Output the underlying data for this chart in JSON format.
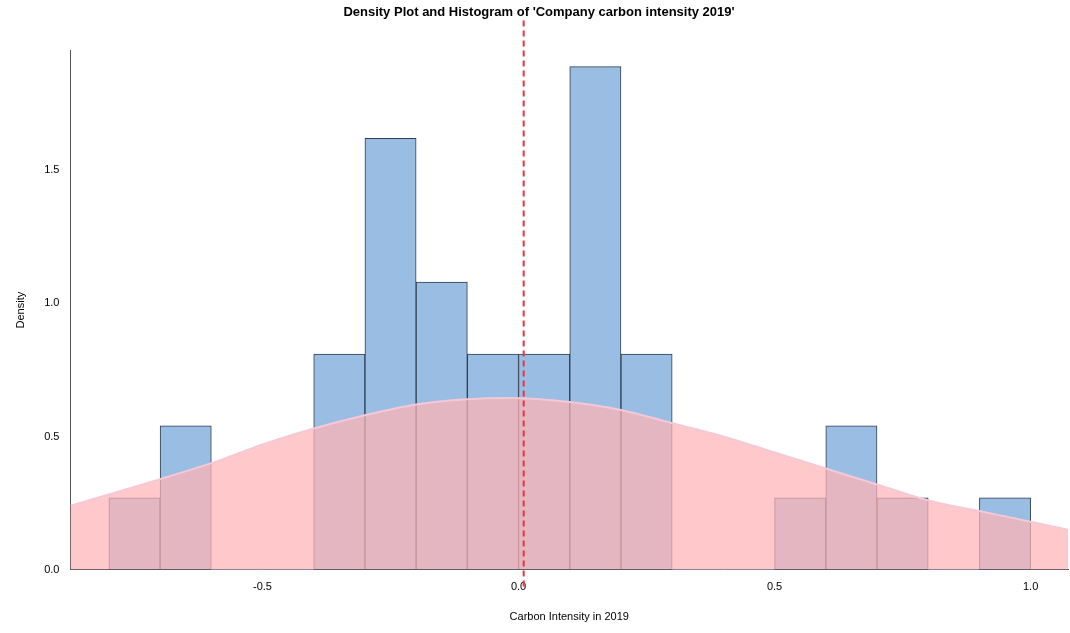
{
  "chart_data": {
    "type": "histogram",
    "title": "Density Plot and Histogram of 'Company carbon intensity 2019'",
    "xlabel": "Carbon Intensity in 2019",
    "ylabel": "Density",
    "xlim": [
      -0.875,
      1.073
    ],
    "ylim": [
      0,
      1.95
    ],
    "xticks": [
      {
        "value": -0.5,
        "label": "-0.5"
      },
      {
        "value": 0,
        "label": "0.0"
      },
      {
        "value": 0.5,
        "label": "0.5"
      },
      {
        "value": 1,
        "label": "1.0"
      }
    ],
    "yticks": [
      {
        "value": 0,
        "label": "0.0"
      },
      {
        "value": 0.5,
        "label": "0.5"
      },
      {
        "value": 1,
        "label": "1.0"
      },
      {
        "value": 1.5,
        "label": "1.5"
      }
    ],
    "grid": false,
    "legend": false,
    "series": [
      {
        "color": "#99bde3",
        "bins": [
          -0.8,
          -0.7,
          -0.6,
          -0.5,
          -0.4,
          -0.3,
          -0.2,
          -0.1,
          0,
          0.1,
          0.2,
          0.3,
          0.4,
          0.5,
          0.6,
          0.7,
          0.8,
          0.9,
          1.0
        ],
        "values": [
          0.27,
          0.54,
          0,
          0,
          0.81,
          1.62,
          1.08,
          0.81,
          0.81,
          1.89,
          0.81,
          0,
          0,
          0.27,
          0.54,
          0.27,
          0,
          0.27
        ]
      },
      {
        "type": "area",
        "color": "#ffb3b5",
        "x": [
          -0.875,
          -0.7,
          -0.6,
          -0.5,
          -0.4,
          -0.3,
          -0.2,
          -0.1,
          -0.02,
          0.1,
          0.2,
          0.3,
          0.4,
          0.5,
          0.6,
          0.7,
          0.8,
          0.9,
          1.0,
          1.073
        ],
        "values": [
          0.24,
          0.34,
          0.4,
          0.47,
          0.53,
          0.58,
          0.62,
          0.64,
          0.645,
          0.63,
          0.6,
          0.55,
          0.5,
          0.44,
          0.38,
          0.32,
          0.26,
          0.22,
          0.18,
          0.15
        ]
      }
    ],
    "ref_lines": [
      {
        "axis": "x",
        "value": 0.01,
        "color": "#e8363a",
        "line_style": "dashed"
      }
    ]
  }
}
